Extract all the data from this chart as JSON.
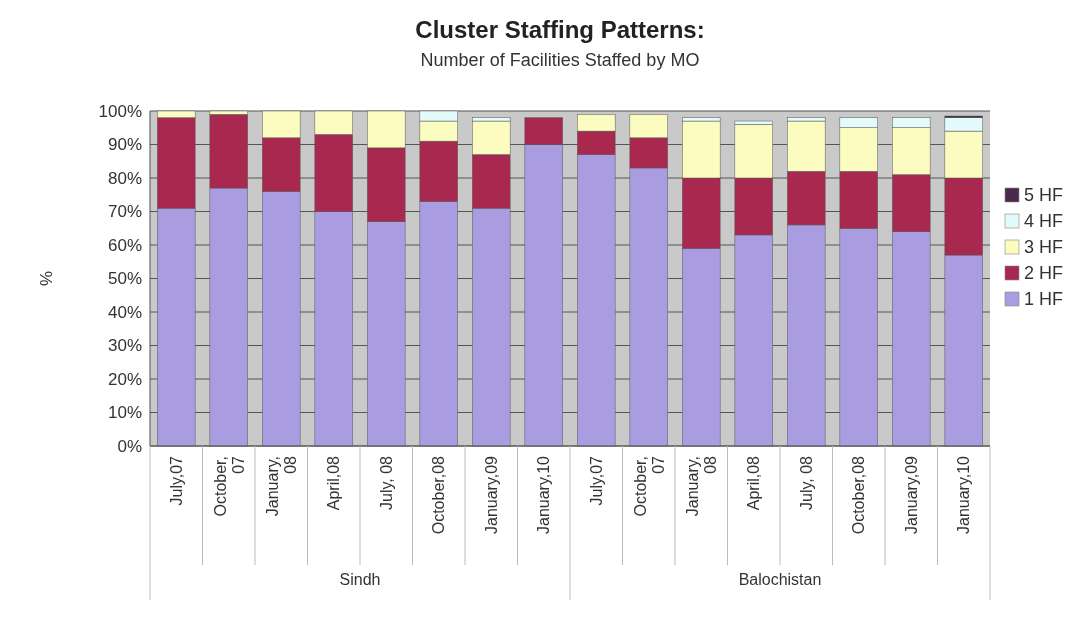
{
  "chart_data": {
    "type": "bar",
    "stacked": true,
    "title": "Cluster Staffing Patterns:",
    "subtitle": "Number of Facilities Staffed by MO",
    "ylabel": "%",
    "categories": [
      "July,07",
      "October, 07",
      "January, 08",
      "April,08",
      "July, 08",
      "October,08",
      "January,09",
      "January,10",
      "July,07",
      "October, 07",
      "January, 08",
      "April,08",
      "July, 08",
      "October,08",
      "January,09",
      "January,10"
    ],
    "series": [
      {
        "name": "1 HF",
        "color": "#a99ce0",
        "values": [
          71,
          77,
          76,
          70,
          67,
          73,
          71,
          90,
          87,
          83,
          59,
          63,
          66,
          65,
          64,
          57
        ]
      },
      {
        "name": "2 HF",
        "color": "#a8284f",
        "values": [
          27,
          22,
          16,
          23,
          22,
          18,
          16,
          8,
          7,
          9,
          21,
          17,
          16,
          17,
          17,
          23
        ]
      },
      {
        "name": "3 HF",
        "color": "#fdfcc0",
        "values": [
          2,
          1,
          8,
          7,
          11,
          6,
          10,
          0,
          5,
          7,
          17,
          16,
          15,
          13,
          14,
          14
        ]
      },
      {
        "name": "4 HF",
        "color": "#e4fbfb",
        "values": [
          0,
          0,
          0,
          0,
          0,
          3,
          1,
          0,
          0,
          0,
          1,
          1,
          1,
          3,
          3,
          4
        ]
      },
      {
        "name": "5 HF",
        "color": "#4a2a4a",
        "values": [
          0,
          0,
          0,
          0,
          0,
          0,
          0,
          0,
          0,
          0,
          0,
          0,
          0,
          0,
          0,
          0.5
        ]
      }
    ],
    "ylim": [
      0,
      100
    ],
    "yticks": [
      {
        "value": 0,
        "label": "0%"
      },
      {
        "value": 10,
        "label": "10%"
      },
      {
        "value": 20,
        "label": "20%"
      },
      {
        "value": 30,
        "label": "30%"
      },
      {
        "value": 40,
        "label": "40%"
      },
      {
        "value": 50,
        "label": "50%"
      },
      {
        "value": 60,
        "label": "60%"
      },
      {
        "value": 70,
        "label": "70%"
      },
      {
        "value": 80,
        "label": "80%"
      },
      {
        "value": 90,
        "label": "90%"
      },
      {
        "value": 100,
        "label": "100%"
      }
    ],
    "grid": "y",
    "legend": "right",
    "annotations": [
      "Sindh",
      "Balochistan"
    ]
  }
}
